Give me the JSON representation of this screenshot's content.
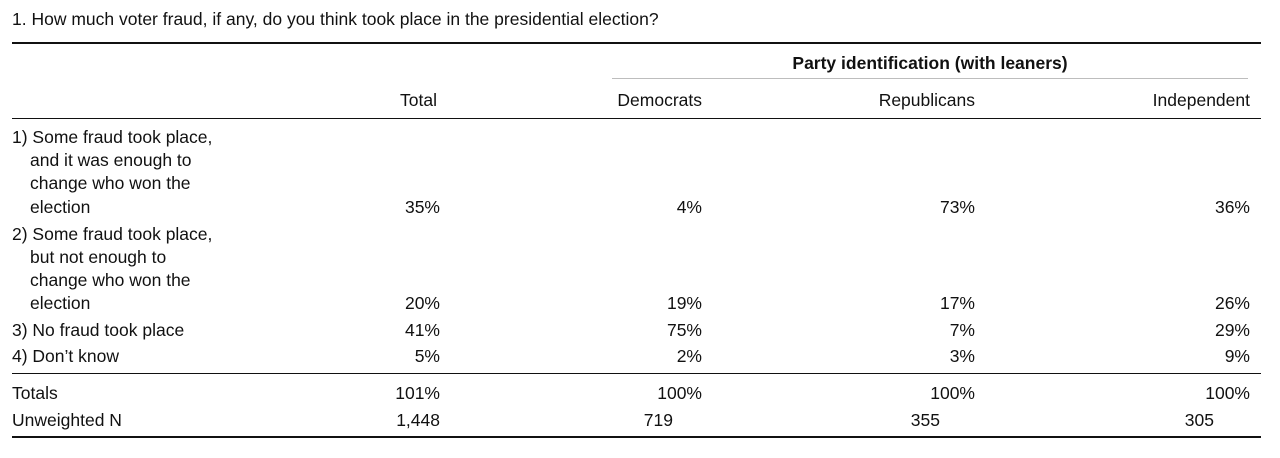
{
  "question": "1. How much voter fraud, if any, do you think took place in the presidential election?",
  "header": {
    "group_label": "Party identification (with leaners)",
    "columns": [
      "Total",
      "Democrats",
      "Republicans",
      "Independent"
    ]
  },
  "rows": [
    {
      "label_lines": [
        "1) Some fraud took place,",
        "and it was enough to",
        "change who won the",
        "election"
      ],
      "values": [
        "35%",
        "4%",
        "73%",
        "36%"
      ]
    },
    {
      "label_lines": [
        "2) Some fraud took place,",
        "but not enough to",
        "change who won the",
        "election"
      ],
      "values": [
        "20%",
        "19%",
        "17%",
        "26%"
      ]
    },
    {
      "label_lines": [
        "3) No fraud took place"
      ],
      "values": [
        "41%",
        "75%",
        "7%",
        "29%"
      ]
    },
    {
      "label_lines": [
        "4) Don’t know"
      ],
      "values": [
        "5%",
        "2%",
        "3%",
        "9%"
      ]
    }
  ],
  "totals": {
    "label": "Totals",
    "values": [
      "101%",
      "100%",
      "100%",
      "100%"
    ]
  },
  "unweighted": {
    "label": "Unweighted N",
    "values": [
      "1,448",
      "719",
      "355",
      "305"
    ]
  }
}
